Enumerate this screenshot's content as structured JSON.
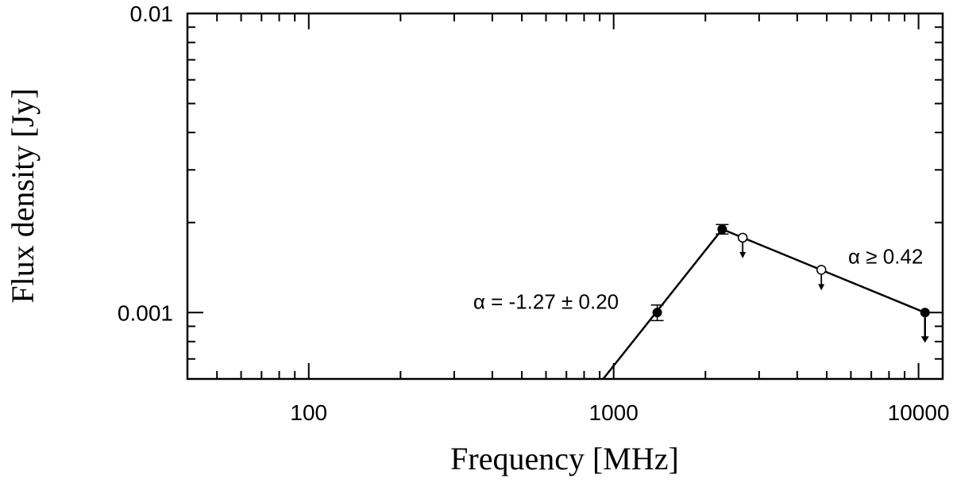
{
  "chart_data": {
    "type": "scatter",
    "xlabel": "Frequency [MHz]",
    "ylabel": "Flux density [Jy]",
    "x_scale": "log",
    "y_scale": "log",
    "xlim": [
      40,
      12000
    ],
    "ylim": [
      0.0006,
      0.01
    ],
    "x_tick_labels": [
      {
        "value": 100,
        "label": "100"
      },
      {
        "value": 1000,
        "label": "1000"
      },
      {
        "value": 10000,
        "label": "10000"
      }
    ],
    "y_tick_labels": [
      {
        "value": 0.001,
        "label": "0.001"
      },
      {
        "value": 0.01,
        "label": "0.01"
      }
    ],
    "grid": false,
    "points": [
      {
        "x": 1390,
        "y": 0.001,
        "err": 6e-05,
        "marker": "filled",
        "upper_limit": false
      },
      {
        "x": 2270,
        "y": 0.0019,
        "err": 7e-05,
        "marker": "filled",
        "upper_limit": false
      },
      {
        "x": 2650,
        "y": 0.00178,
        "marker": "open",
        "upper_limit": true
      },
      {
        "x": 4800,
        "y": 0.00139,
        "marker": "open",
        "upper_limit": true
      },
      {
        "x": 10500,
        "y": 0.001,
        "marker": "filled",
        "upper_limit": true
      }
    ],
    "fit_lines": [
      {
        "x": [
          900,
          2270
        ],
        "y": [
          0.00058,
          0.0019
        ]
      },
      {
        "x": [
          2270,
          10500
        ],
        "y": [
          0.0019,
          0.001
        ]
      }
    ],
    "annotations": [
      {
        "text": "α = -1.27 ± 0.20",
        "x": 600,
        "y": 0.00108
      },
      {
        "text": "α ≥ 0.42",
        "x": 7800,
        "y": 0.00153
      }
    ]
  }
}
